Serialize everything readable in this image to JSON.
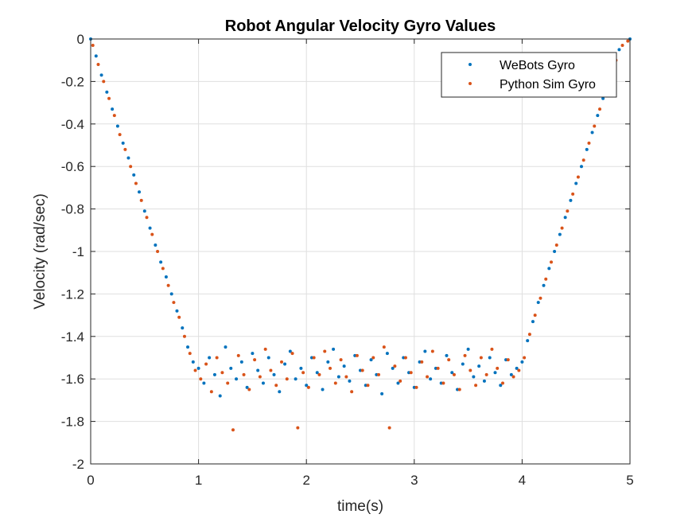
{
  "chart_data": {
    "type": "scatter",
    "title": "Robot Angular Velocity Gyro Values",
    "xlabel": "time(s)",
    "ylabel": "Velocity (rad/sec)",
    "xlim": [
      0,
      5
    ],
    "ylim": [
      -2,
      0
    ],
    "xticks": [
      0,
      1,
      2,
      3,
      4,
      5
    ],
    "xtick_labels": [
      "0",
      "1",
      "2",
      "3",
      "4",
      "5"
    ],
    "yticks": [
      0,
      -0.2,
      -0.4,
      -0.6,
      -0.8,
      -1,
      -1.2,
      -1.4,
      -1.6,
      -1.8,
      -2
    ],
    "ytick_labels": [
      "0",
      "-0.2",
      "-0.4",
      "-0.6",
      "-0.8",
      "-1",
      "-1.2",
      "-1.4",
      "-1.6",
      "-1.8",
      "-2"
    ],
    "grid": true,
    "legend_position": "top-right",
    "series": [
      {
        "name": "WeBots Gyro",
        "color": "#0072BD",
        "points": [
          [
            0,
            0
          ],
          [
            0.05,
            -0.08
          ],
          [
            0.1,
            -0.17
          ],
          [
            0.15,
            -0.25
          ],
          [
            0.2,
            -0.33
          ],
          [
            0.25,
            -0.41
          ],
          [
            0.3,
            -0.49
          ],
          [
            0.35,
            -0.56
          ],
          [
            0.4,
            -0.64
          ],
          [
            0.45,
            -0.72
          ],
          [
            0.5,
            -0.81
          ],
          [
            0.55,
            -0.89
          ],
          [
            0.6,
            -0.97
          ],
          [
            0.65,
            -1.05
          ],
          [
            0.7,
            -1.12
          ],
          [
            0.75,
            -1.2
          ],
          [
            0.8,
            -1.28
          ],
          [
            0.85,
            -1.36
          ],
          [
            0.9,
            -1.45
          ],
          [
            0.95,
            -1.52
          ],
          [
            1.0,
            -1.55
          ],
          [
            1.05,
            -1.62
          ],
          [
            1.1,
            -1.5
          ],
          [
            1.15,
            -1.58
          ],
          [
            1.2,
            -1.68
          ],
          [
            1.25,
            -1.45
          ],
          [
            1.3,
            -1.55
          ],
          [
            1.35,
            -1.6
          ],
          [
            1.4,
            -1.52
          ],
          [
            1.45,
            -1.64
          ],
          [
            1.5,
            -1.48
          ],
          [
            1.55,
            -1.56
          ],
          [
            1.6,
            -1.62
          ],
          [
            1.65,
            -1.5
          ],
          [
            1.7,
            -1.58
          ],
          [
            1.75,
            -1.66
          ],
          [
            1.8,
            -1.53
          ],
          [
            1.85,
            -1.47
          ],
          [
            1.9,
            -1.6
          ],
          [
            1.95,
            -1.55
          ],
          [
            2.0,
            -1.63
          ],
          [
            2.05,
            -1.5
          ],
          [
            2.1,
            -1.57
          ],
          [
            2.15,
            -1.65
          ],
          [
            2.2,
            -1.52
          ],
          [
            2.25,
            -1.46
          ],
          [
            2.3,
            -1.59
          ],
          [
            2.35,
            -1.54
          ],
          [
            2.4,
            -1.61
          ],
          [
            2.45,
            -1.49
          ],
          [
            2.5,
            -1.56
          ],
          [
            2.55,
            -1.63
          ],
          [
            2.6,
            -1.51
          ],
          [
            2.65,
            -1.58
          ],
          [
            2.7,
            -1.67
          ],
          [
            2.75,
            -1.48
          ],
          [
            2.8,
            -1.55
          ],
          [
            2.85,
            -1.62
          ],
          [
            2.9,
            -1.5
          ],
          [
            2.95,
            -1.57
          ],
          [
            3.0,
            -1.64
          ],
          [
            3.05,
            -1.52
          ],
          [
            3.1,
            -1.47
          ],
          [
            3.15,
            -1.6
          ],
          [
            3.2,
            -1.55
          ],
          [
            3.25,
            -1.62
          ],
          [
            3.3,
            -1.49
          ],
          [
            3.35,
            -1.57
          ],
          [
            3.4,
            -1.65
          ],
          [
            3.45,
            -1.53
          ],
          [
            3.5,
            -1.46
          ],
          [
            3.55,
            -1.59
          ],
          [
            3.6,
            -1.54
          ],
          [
            3.65,
            -1.61
          ],
          [
            3.7,
            -1.5
          ],
          [
            3.75,
            -1.57
          ],
          [
            3.8,
            -1.63
          ],
          [
            3.85,
            -1.51
          ],
          [
            3.9,
            -1.58
          ],
          [
            3.95,
            -1.55
          ],
          [
            4.0,
            -1.52
          ],
          [
            4.05,
            -1.42
          ],
          [
            4.1,
            -1.33
          ],
          [
            4.15,
            -1.24
          ],
          [
            4.2,
            -1.16
          ],
          [
            4.25,
            -1.08
          ],
          [
            4.3,
            -1.0
          ],
          [
            4.35,
            -0.92
          ],
          [
            4.4,
            -0.84
          ],
          [
            4.45,
            -0.76
          ],
          [
            4.5,
            -0.68
          ],
          [
            4.55,
            -0.6
          ],
          [
            4.6,
            -0.52
          ],
          [
            4.65,
            -0.44
          ],
          [
            4.7,
            -0.36
          ],
          [
            4.75,
            -0.28
          ],
          [
            4.8,
            -0.2
          ],
          [
            4.85,
            -0.12
          ],
          [
            4.9,
            -0.05
          ],
          [
            5.0,
            0
          ]
        ]
      },
      {
        "name": "Python Sim Gyro",
        "color": "#D95319",
        "points": [
          [
            0.02,
            -0.03
          ],
          [
            0.07,
            -0.12
          ],
          [
            0.12,
            -0.2
          ],
          [
            0.17,
            -0.28
          ],
          [
            0.22,
            -0.36
          ],
          [
            0.27,
            -0.45
          ],
          [
            0.32,
            -0.52
          ],
          [
            0.37,
            -0.6
          ],
          [
            0.42,
            -0.68
          ],
          [
            0.47,
            -0.76
          ],
          [
            0.52,
            -0.84
          ],
          [
            0.57,
            -0.92
          ],
          [
            0.62,
            -1.0
          ],
          [
            0.67,
            -1.08
          ],
          [
            0.72,
            -1.16
          ],
          [
            0.77,
            -1.24
          ],
          [
            0.82,
            -1.31
          ],
          [
            0.87,
            -1.4
          ],
          [
            0.92,
            -1.48
          ],
          [
            0.97,
            -1.56
          ],
          [
            1.02,
            -1.6
          ],
          [
            1.07,
            -1.53
          ],
          [
            1.12,
            -1.66
          ],
          [
            1.17,
            -1.5
          ],
          [
            1.22,
            -1.57
          ],
          [
            1.27,
            -1.62
          ],
          [
            1.32,
            -1.84
          ],
          [
            1.37,
            -1.49
          ],
          [
            1.42,
            -1.58
          ],
          [
            1.47,
            -1.65
          ],
          [
            1.52,
            -1.51
          ],
          [
            1.57,
            -1.59
          ],
          [
            1.62,
            -1.46
          ],
          [
            1.67,
            -1.56
          ],
          [
            1.72,
            -1.63
          ],
          [
            1.77,
            -1.52
          ],
          [
            1.82,
            -1.6
          ],
          [
            1.87,
            -1.48
          ],
          [
            1.92,
            -1.83
          ],
          [
            1.97,
            -1.57
          ],
          [
            2.02,
            -1.64
          ],
          [
            2.07,
            -1.5
          ],
          [
            2.12,
            -1.58
          ],
          [
            2.17,
            -1.47
          ],
          [
            2.22,
            -1.55
          ],
          [
            2.27,
            -1.62
          ],
          [
            2.32,
            -1.51
          ],
          [
            2.37,
            -1.59
          ],
          [
            2.42,
            -1.66
          ],
          [
            2.47,
            -1.49
          ],
          [
            2.52,
            -1.56
          ],
          [
            2.57,
            -1.63
          ],
          [
            2.62,
            -1.5
          ],
          [
            2.67,
            -1.58
          ],
          [
            2.72,
            -1.45
          ],
          [
            2.77,
            -1.83
          ],
          [
            2.82,
            -1.54
          ],
          [
            2.87,
            -1.61
          ],
          [
            2.92,
            -1.5
          ],
          [
            2.97,
            -1.57
          ],
          [
            3.02,
            -1.64
          ],
          [
            3.07,
            -1.52
          ],
          [
            3.12,
            -1.59
          ],
          [
            3.17,
            -1.47
          ],
          [
            3.22,
            -1.55
          ],
          [
            3.27,
            -1.62
          ],
          [
            3.32,
            -1.51
          ],
          [
            3.37,
            -1.58
          ],
          [
            3.42,
            -1.65
          ],
          [
            3.47,
            -1.49
          ],
          [
            3.52,
            -1.56
          ],
          [
            3.57,
            -1.63
          ],
          [
            3.62,
            -1.5
          ],
          [
            3.67,
            -1.58
          ],
          [
            3.72,
            -1.46
          ],
          [
            3.77,
            -1.55
          ],
          [
            3.82,
            -1.62
          ],
          [
            3.87,
            -1.51
          ],
          [
            3.92,
            -1.59
          ],
          [
            3.97,
            -1.56
          ],
          [
            4.02,
            -1.5
          ],
          [
            4.07,
            -1.39
          ],
          [
            4.12,
            -1.3
          ],
          [
            4.17,
            -1.22
          ],
          [
            4.22,
            -1.13
          ],
          [
            4.27,
            -1.05
          ],
          [
            4.32,
            -0.97
          ],
          [
            4.37,
            -0.89
          ],
          [
            4.42,
            -0.81
          ],
          [
            4.47,
            -0.73
          ],
          [
            4.52,
            -0.65
          ],
          [
            4.57,
            -0.57
          ],
          [
            4.62,
            -0.49
          ],
          [
            4.67,
            -0.41
          ],
          [
            4.72,
            -0.33
          ],
          [
            4.77,
            -0.25
          ],
          [
            4.82,
            -0.17
          ],
          [
            4.87,
            -0.1
          ],
          [
            4.93,
            -0.03
          ],
          [
            4.98,
            -0.01
          ]
        ]
      }
    ]
  }
}
